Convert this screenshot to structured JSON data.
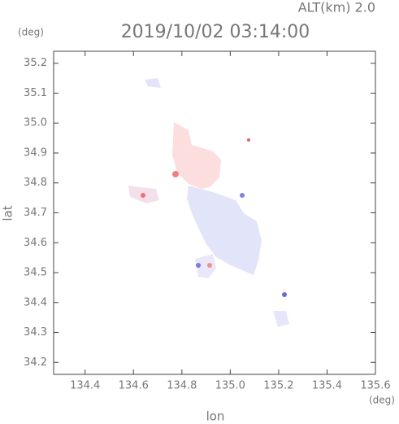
{
  "chart_data": {
    "type": "field",
    "title": "2019/10/02 03:14:00",
    "subtitle": "ALT(km) 2.0",
    "x_label": "lon",
    "y_label": "lat",
    "x_unit": "(deg)",
    "y_unit": "(deg)",
    "xlim": [
      134.27,
      135.6
    ],
    "xticks": [
      134.4,
      134.6,
      134.8,
      135.0,
      135.2,
      135.4,
      135.6
    ],
    "ylim": [
      34.16,
      35.24
    ],
    "yticks": [
      34.2,
      34.3,
      34.4,
      34.5,
      34.6,
      34.7,
      34.8,
      34.9,
      35.0,
      35.1,
      35.2
    ]
  }
}
